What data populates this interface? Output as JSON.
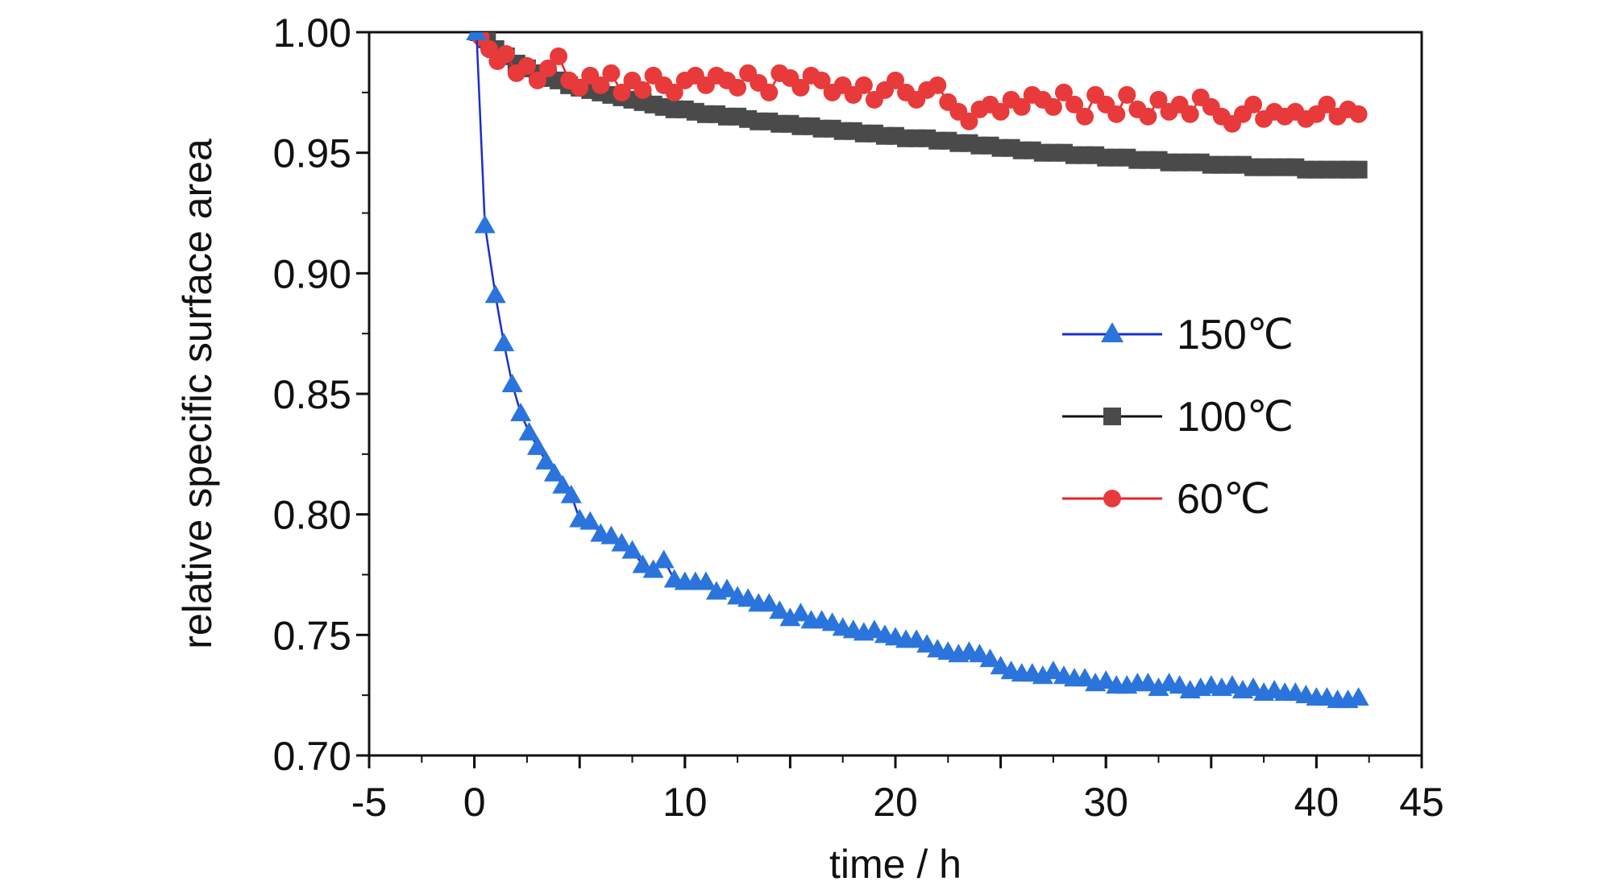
{
  "chart_data": {
    "type": "scatter",
    "xlabel": "time / h",
    "ylabel": "relative specific surface area",
    "xlim": [
      -5,
      45
    ],
    "ylim": [
      0.7,
      1.0
    ],
    "x_ticks": [
      "-5",
      "0",
      "10",
      "20",
      "30",
      "40",
      "45"
    ],
    "y_ticks": [
      "0.70",
      "0.75",
      "0.80",
      "0.85",
      "0.90",
      "0.95",
      "1.00"
    ],
    "grid": false,
    "legend_position": "right",
    "series": [
      {
        "name": "150℃",
        "color": "#2a74dc",
        "line_color": "#1a2fc8",
        "marker": "triangle",
        "x": [
          0.1,
          0.5,
          1,
          1.4,
          1.8,
          2.2,
          2.6,
          3,
          3.4,
          3.8,
          4.2,
          4.6,
          5,
          5.5,
          6,
          6.5,
          7,
          7.5,
          8,
          8.5,
          9,
          9.5,
          10,
          10.5,
          11,
          11.5,
          12,
          12.5,
          13,
          13.5,
          14,
          14.5,
          15,
          15.5,
          16,
          16.5,
          17,
          17.5,
          18,
          18.5,
          19,
          19.5,
          20,
          20.5,
          21,
          21.5,
          22,
          22.5,
          23,
          23.5,
          24,
          24.5,
          25,
          25.5,
          26,
          26.5,
          27,
          27.5,
          28,
          28.5,
          29,
          29.5,
          30,
          30.5,
          31,
          31.5,
          32,
          32.5,
          33,
          33.5,
          34,
          34.5,
          35,
          35.5,
          36,
          36.5,
          37,
          37.5,
          38,
          38.5,
          39,
          39.5,
          40,
          40.5,
          41,
          41.5,
          42
        ],
        "y": [
          1.0,
          0.92,
          0.891,
          0.871,
          0.854,
          0.842,
          0.834,
          0.828,
          0.822,
          0.817,
          0.812,
          0.808,
          0.798,
          0.797,
          0.792,
          0.791,
          0.788,
          0.785,
          0.779,
          0.777,
          0.781,
          0.773,
          0.772,
          0.772,
          0.772,
          0.768,
          0.769,
          0.766,
          0.765,
          0.763,
          0.763,
          0.76,
          0.757,
          0.759,
          0.756,
          0.756,
          0.755,
          0.753,
          0.752,
          0.751,
          0.752,
          0.75,
          0.749,
          0.748,
          0.748,
          0.746,
          0.744,
          0.743,
          0.742,
          0.743,
          0.742,
          0.74,
          0.737,
          0.735,
          0.734,
          0.734,
          0.733,
          0.735,
          0.733,
          0.732,
          0.732,
          0.73,
          0.731,
          0.729,
          0.729,
          0.73,
          0.73,
          0.728,
          0.73,
          0.729,
          0.727,
          0.728,
          0.729,
          0.728,
          0.729,
          0.727,
          0.728,
          0.726,
          0.727,
          0.726,
          0.726,
          0.725,
          0.724,
          0.724,
          0.723,
          0.723,
          0.724
        ]
      },
      {
        "name": "100℃",
        "color": "#4a4a4a",
        "line_color": "#111111",
        "marker": "square",
        "x": [
          0.2,
          0.6,
          1,
          1.5,
          2,
          2.5,
          3,
          3.5,
          4,
          4.5,
          5,
          5.5,
          6,
          6.5,
          7,
          7.5,
          8,
          8.5,
          9,
          9.5,
          10,
          10.5,
          11,
          11.5,
          12,
          12.5,
          13,
          13.5,
          14,
          14.5,
          15,
          15.5,
          16,
          16.5,
          17,
          17.5,
          18,
          18.5,
          19,
          19.5,
          20,
          20.5,
          21,
          21.5,
          22,
          22.5,
          23,
          23.5,
          24,
          24.5,
          25,
          25.5,
          26,
          26.5,
          27,
          27.5,
          28,
          28.5,
          29,
          29.5,
          30,
          30.5,
          31,
          31.5,
          32,
          32.5,
          33,
          33.5,
          34,
          34.5,
          35,
          35.5,
          36,
          36.5,
          37,
          37.5,
          38,
          38.5,
          39,
          39.5,
          40,
          40.5,
          41,
          41.5,
          42
        ],
        "y": [
          1.0,
          0.997,
          0.993,
          0.99,
          0.987,
          0.985,
          0.983,
          0.981,
          0.98,
          0.978,
          0.977,
          0.976,
          0.975,
          0.974,
          0.973,
          0.972,
          0.971,
          0.97,
          0.969,
          0.968,
          0.968,
          0.967,
          0.966,
          0.966,
          0.965,
          0.965,
          0.964,
          0.963,
          0.963,
          0.962,
          0.962,
          0.961,
          0.961,
          0.96,
          0.96,
          0.959,
          0.959,
          0.958,
          0.958,
          0.957,
          0.957,
          0.956,
          0.956,
          0.956,
          0.955,
          0.955,
          0.954,
          0.954,
          0.953,
          0.953,
          0.952,
          0.952,
          0.951,
          0.951,
          0.95,
          0.95,
          0.95,
          0.949,
          0.949,
          0.949,
          0.948,
          0.948,
          0.948,
          0.947,
          0.947,
          0.947,
          0.946,
          0.946,
          0.946,
          0.946,
          0.945,
          0.945,
          0.945,
          0.945,
          0.944,
          0.944,
          0.944,
          0.944,
          0.944,
          0.943,
          0.943,
          0.943,
          0.943,
          0.943,
          0.943
        ]
      },
      {
        "name": "60℃",
        "color": "#e83a3a",
        "line_color": "#e8242a",
        "marker": "circle",
        "x": [
          0.3,
          0.7,
          1.1,
          1.5,
          2,
          2.5,
          3,
          3.5,
          4,
          4.5,
          5,
          5.5,
          6,
          6.5,
          7,
          7.5,
          8,
          8.5,
          9,
          9.5,
          10,
          10.5,
          11,
          11.5,
          12,
          12.5,
          13,
          13.5,
          14,
          14.5,
          15,
          15.5,
          16,
          16.5,
          17,
          17.5,
          18,
          18.5,
          19,
          19.5,
          20,
          20.5,
          21,
          21.5,
          22,
          22.5,
          23,
          23.5,
          24,
          24.5,
          25,
          25.5,
          26,
          26.5,
          27,
          27.5,
          28,
          28.5,
          29,
          29.5,
          30,
          30.5,
          31,
          31.5,
          32,
          32.5,
          33,
          33.5,
          34,
          34.5,
          35,
          35.5,
          36,
          36.5,
          37,
          37.5,
          38,
          38.5,
          39,
          39.5,
          40,
          40.5,
          41,
          41.5,
          42
        ],
        "y": [
          0.998,
          0.993,
          0.988,
          0.991,
          0.983,
          0.986,
          0.98,
          0.985,
          0.99,
          0.98,
          0.977,
          0.982,
          0.978,
          0.983,
          0.975,
          0.98,
          0.976,
          0.982,
          0.978,
          0.975,
          0.98,
          0.982,
          0.978,
          0.982,
          0.98,
          0.977,
          0.983,
          0.979,
          0.975,
          0.983,
          0.981,
          0.977,
          0.982,
          0.98,
          0.975,
          0.978,
          0.974,
          0.978,
          0.972,
          0.976,
          0.98,
          0.975,
          0.972,
          0.976,
          0.978,
          0.971,
          0.967,
          0.963,
          0.968,
          0.97,
          0.967,
          0.972,
          0.969,
          0.974,
          0.972,
          0.969,
          0.975,
          0.97,
          0.965,
          0.974,
          0.97,
          0.966,
          0.974,
          0.968,
          0.965,
          0.972,
          0.967,
          0.97,
          0.966,
          0.973,
          0.969,
          0.965,
          0.962,
          0.966,
          0.97,
          0.964,
          0.967,
          0.965,
          0.967,
          0.964,
          0.966,
          0.97,
          0.965,
          0.968,
          0.966
        ]
      }
    ]
  }
}
